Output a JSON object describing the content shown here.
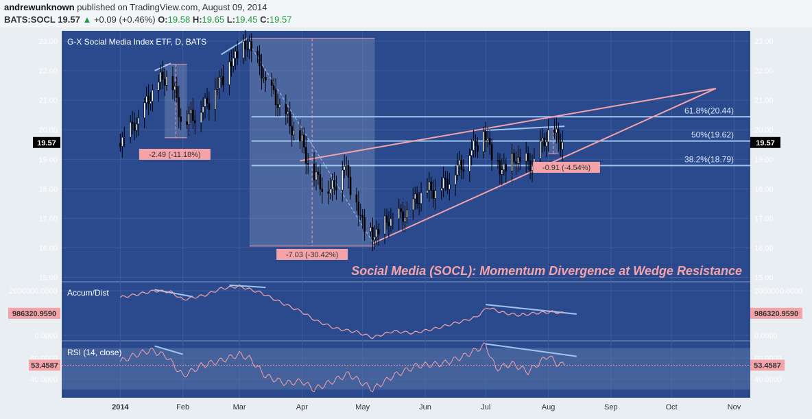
{
  "header": {
    "author": "andrewunknown",
    "published_text": "published on TradingView.com, August 09, 2014",
    "symbol": "BATS:SOCL",
    "last": "19.57",
    "change": "+0.09 (+0.46%)",
    "open_label": "O:",
    "open": "19.58",
    "high_label": "H:",
    "high": "19.65",
    "low_label": "L:",
    "low": "19.45",
    "close_label": "C:",
    "close": "19.57"
  },
  "colors": {
    "background": "#2b4a8e",
    "candle_up": "#ffffff",
    "candle_down": "#000000",
    "trend_line": "#f4a3a8",
    "divergence_line": "#9fc6ee",
    "fib_line": "#9fc6ee",
    "accum_line": "#f4a3a8",
    "rsi_line": "#f4a3a8",
    "price_badge": "#000000",
    "indicator_badge": "#f4a3a8"
  },
  "chart_data": [
    {
      "type": "candlestick",
      "title": "G-X Social Media Index ETF, D, BATS",
      "annotation": "Social Media (SOCL): Momentum Divergence at Wedge Resistance",
      "x_tick_labels": [
        "2014",
        "Feb",
        "Mar",
        "Apr",
        "May",
        "Jun",
        "Jul",
        "Aug",
        "Sep",
        "Oct",
        "Nov"
      ],
      "y_tick_labels": [
        "23.00",
        "22.00",
        "21.00",
        "20.00",
        "19.00",
        "18.00",
        "17.00",
        "16.00",
        "15.00"
      ],
      "ylim": [
        14.85,
        23.35
      ],
      "last_price_label": "19.57",
      "last_price": 19.57,
      "grid": true,
      "close_anchors": [
        [
          "2014-01-01",
          19.55
        ],
        [
          "2014-01-10",
          20.3
        ],
        [
          "2014-01-18",
          21.4
        ],
        [
          "2014-01-25",
          21.9
        ],
        [
          "2014-02-01",
          20.2
        ],
        [
          "2014-02-12",
          20.8
        ],
        [
          "2014-02-20",
          21.7
        ],
        [
          "2014-02-28",
          22.6
        ],
        [
          "2014-03-06",
          22.85
        ],
        [
          "2014-03-14",
          21.6
        ],
        [
          "2014-03-24",
          20.4
        ],
        [
          "2014-04-01",
          19.5
        ],
        [
          "2014-04-07",
          18.4
        ],
        [
          "2014-04-15",
          17.9
        ],
        [
          "2014-04-22",
          18.8
        ],
        [
          "2014-04-30",
          17.0
        ],
        [
          "2014-05-06",
          16.35
        ],
        [
          "2014-05-14",
          16.9
        ],
        [
          "2014-05-22",
          17.1
        ],
        [
          "2014-05-30",
          17.8
        ],
        [
          "2014-06-10",
          18.1
        ],
        [
          "2014-06-20",
          18.9
        ],
        [
          "2014-06-30",
          19.9
        ],
        [
          "2014-07-08",
          18.6
        ],
        [
          "2014-07-16",
          19.0
        ],
        [
          "2014-07-24",
          18.8
        ],
        [
          "2014-08-01",
          19.9
        ],
        [
          "2014-08-08",
          19.57
        ]
      ],
      "fib_levels": [
        {
          "label": "61.8%(20.44)",
          "value": 20.44
        },
        {
          "label": "50%(19.62)",
          "value": 19.62
        },
        {
          "label": "38.2%(18.79)",
          "value": 18.79
        }
      ],
      "measurements": [
        {
          "label": "-2.49 (-11.18%)",
          "from_date": "2014-01-23",
          "to_date": "2014-02-03",
          "high": 22.22,
          "low": 19.73
        },
        {
          "label": "-7.03 (-30.42%)",
          "from_date": "2014-03-06",
          "to_date": "2014-05-07",
          "high": 23.09,
          "low": 16.06
        },
        {
          "label": "-0.91 (-4.54%)",
          "from_date": "2014-08-01",
          "to_date": "2014-08-06",
          "high": 20.1,
          "low": 19.19
        }
      ],
      "wedge_lines": [
        {
          "from": [
            "2014-03-31",
            18.95
          ],
          "to": [
            "2014-10-23",
            21.4
          ]
        },
        {
          "from": [
            "2014-05-06",
            16.15
          ],
          "to": [
            "2014-10-23",
            21.4
          ]
        }
      ],
      "divergence_lines": [
        {
          "from": [
            "2014-01-18",
            22.0
          ],
          "to": [
            "2014-01-26",
            22.25
          ]
        },
        {
          "from": [
            "2014-02-20",
            22.55
          ],
          "to": [
            "2014-03-05",
            23.1
          ]
        },
        {
          "from": [
            "2014-03-06",
            22.9
          ],
          "to": [
            "2014-05-06",
            16.2
          ]
        },
        {
          "from": [
            "2014-07-01",
            19.98
          ],
          "to": [
            "2014-08-09",
            20.12
          ]
        }
      ]
    },
    {
      "type": "line",
      "title": "Accum/Dist",
      "y_tick_labels": [
        "2000000.0000",
        "0.0000"
      ],
      "last_value_label": "986320.9590",
      "last_value": 986320.959,
      "ylim": [
        -250000,
        2400000
      ],
      "points": [
        [
          "2014-01-01",
          1700000
        ],
        [
          "2014-01-10",
          1850000
        ],
        [
          "2014-01-18",
          2000000
        ],
        [
          "2014-01-26",
          1950000
        ],
        [
          "2014-02-01",
          1600000
        ],
        [
          "2014-02-12",
          1800000
        ],
        [
          "2014-02-20",
          2100000
        ],
        [
          "2014-03-01",
          2200000
        ],
        [
          "2014-03-12",
          1900000
        ],
        [
          "2014-03-22",
          1450000
        ],
        [
          "2014-04-01",
          1050000
        ],
        [
          "2014-04-08",
          650000
        ],
        [
          "2014-04-18",
          300000
        ],
        [
          "2014-04-28",
          150000
        ],
        [
          "2014-05-06",
          -100000
        ],
        [
          "2014-05-16",
          180000
        ],
        [
          "2014-05-26",
          100000
        ],
        [
          "2014-06-06",
          300000
        ],
        [
          "2014-06-16",
          550000
        ],
        [
          "2014-06-26",
          800000
        ],
        [
          "2014-07-02",
          1250000
        ],
        [
          "2014-07-10",
          1000000
        ],
        [
          "2014-07-18",
          900000
        ],
        [
          "2014-07-26",
          1000000
        ],
        [
          "2014-08-03",
          1050000
        ],
        [
          "2014-08-09",
          986320.959
        ]
      ],
      "divergence_lines": [
        {
          "from": [
            "2014-01-18",
            2050000
          ],
          "to": [
            "2014-02-06",
            1730000
          ]
        },
        {
          "from": [
            "2014-02-24",
            2250000
          ],
          "to": [
            "2014-03-14",
            2150000
          ]
        },
        {
          "from": [
            "2014-07-01",
            1380000
          ],
          "to": [
            "2014-08-15",
            950000
          ]
        }
      ]
    },
    {
      "type": "line",
      "title": "RSI (14, close)",
      "y_tick_labels": [
        "60.0000",
        "40.0000"
      ],
      "last_value_label": "53.4587",
      "last_value": 53.4587,
      "ylim": [
        22,
        77
      ],
      "band": [
        30,
        70
      ],
      "points": [
        [
          "2014-01-01",
          57
        ],
        [
          "2014-01-08",
          63
        ],
        [
          "2014-01-16",
          68
        ],
        [
          "2014-01-24",
          62
        ],
        [
          "2014-02-01",
          43
        ],
        [
          "2014-02-10",
          53
        ],
        [
          "2014-02-20",
          58
        ],
        [
          "2014-03-01",
          64
        ],
        [
          "2014-03-06",
          60
        ],
        [
          "2014-03-14",
          43
        ],
        [
          "2014-03-24",
          36
        ],
        [
          "2014-04-01",
          38
        ],
        [
          "2014-04-07",
          30
        ],
        [
          "2014-04-15",
          37
        ],
        [
          "2014-04-24",
          45
        ],
        [
          "2014-05-06",
          30
        ],
        [
          "2014-05-16",
          43
        ],
        [
          "2014-05-28",
          53
        ],
        [
          "2014-06-10",
          55
        ],
        [
          "2014-06-20",
          62
        ],
        [
          "2014-07-01",
          73
        ],
        [
          "2014-07-06",
          50
        ],
        [
          "2014-07-14",
          55
        ],
        [
          "2014-07-22",
          47
        ],
        [
          "2014-08-01",
          63
        ],
        [
          "2014-08-05",
          55
        ],
        [
          "2014-08-09",
          53.4587
        ]
      ],
      "divergence_lines": [
        {
          "from": [
            "2014-01-18",
            72
          ],
          "to": [
            "2014-02-01",
            64
          ]
        },
        {
          "from": [
            "2014-07-01",
            74
          ],
          "to": [
            "2014-08-15",
            62
          ]
        }
      ]
    }
  ]
}
